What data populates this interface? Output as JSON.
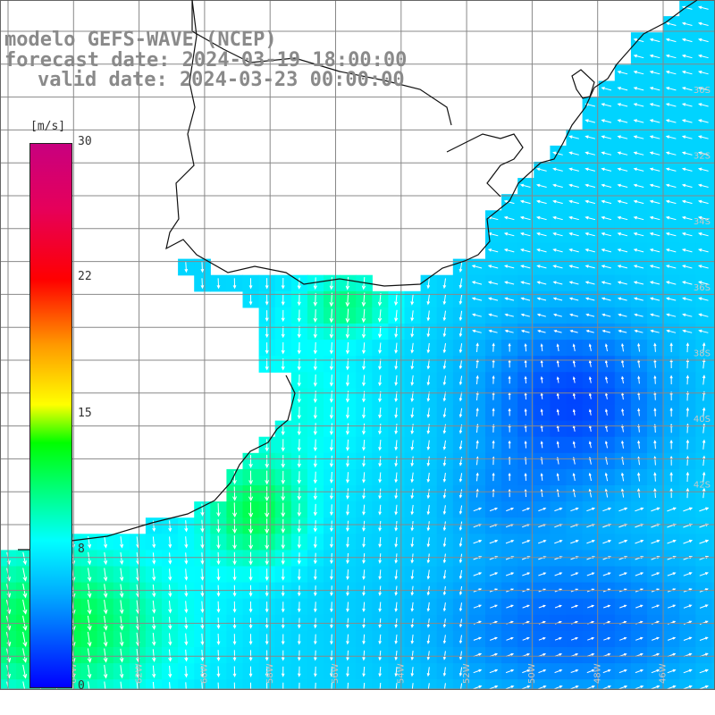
{
  "header": {
    "model": "modelo GEFS-WAVE (NCEP)",
    "forecast": "forecast date: 2024-03-19 18:00:00",
    "valid": "valid date: 2024-03-23 00:00:00"
  },
  "colorbar": {
    "unit": "[m/s]",
    "ticks": [
      {
        "label": "30",
        "value": 30
      },
      {
        "label": "22",
        "value": 22
      },
      {
        "label": "15",
        "value": 15
      },
      {
        "label": "8",
        "value": 8
      },
      {
        "label": "0",
        "value": 0
      }
    ]
  },
  "lat_labels": [
    "30S",
    "32S",
    "34S",
    "36S",
    "38S",
    "40S",
    "42S"
  ],
  "lon_labels": [
    "64W",
    "62W",
    "60W",
    "58W",
    "56W",
    "54W",
    "52W",
    "50W",
    "48W",
    "46W"
  ]
}
